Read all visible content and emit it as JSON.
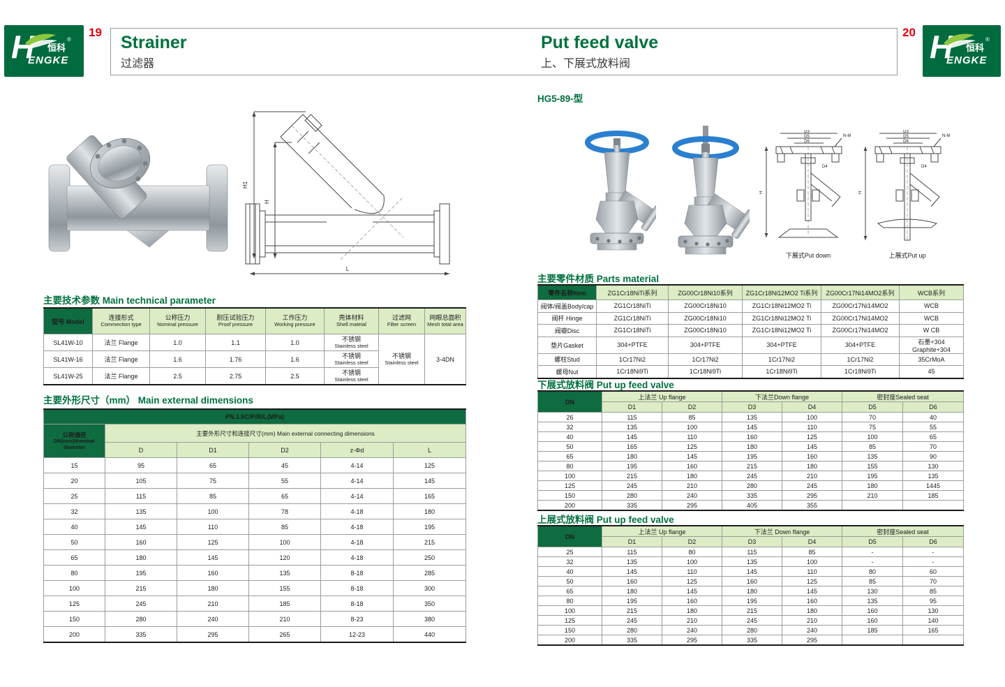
{
  "page": {
    "left_number": "19",
    "right_number": "20",
    "brand": {
      "cn": "恒科",
      "reg": "®",
      "en": "ENGKE",
      "h": "H"
    },
    "left_title": {
      "en": "Strainer",
      "zh": "过滤器"
    },
    "right_title": {
      "en": "Put feed valve",
      "zh": "上、下展式放料阀"
    }
  },
  "colors": {
    "brand_green": "#006b3f",
    "dark_cell": "#0f6b40",
    "light_cell": "#dcecc5",
    "page_num_red": "#e60012"
  },
  "left_page": {
    "drawing": {
      "dim_h1": "H1",
      "dim_h": "H",
      "dim_l": "L"
    },
    "tech_section_title": {
      "zh": "主要技术参数",
      "en": "Main technical parameter"
    },
    "tech_table": {
      "header_rows": [
        [
          {
            "t": "型号 Model",
            "cls": "dark"
          },
          {
            "zh": "连接形式",
            "en": "Commection type",
            "cls": "lite"
          },
          {
            "zh": "公称压力",
            "en": "Nominal pressure",
            "cls": "lite"
          },
          {
            "zh": "耐压试验压力",
            "en": "Proof pressure",
            "cls": "lite"
          },
          {
            "zh": "工作压力",
            "en": "Working pressure",
            "cls": "lite"
          },
          {
            "zh": "壳体材料",
            "en": "Shell mateial",
            "cls": "lite"
          },
          {
            "zh": "过滤网",
            "en": "Filter screen",
            "cls": "lite"
          },
          {
            "zh": "网眼总面积",
            "en": "Mesh total area",
            "cls": "lite"
          }
        ]
      ],
      "rows": [
        [
          "SL41W-10",
          "法兰 Flange",
          "1.0",
          "1.1",
          "1.0",
          {
            "zh": "不锈钢",
            "en": "Stainless steel"
          },
          {
            "zh": "不锈钢",
            "en": "Stainless steel",
            "rs": 3
          },
          {
            "t": "3-4DN",
            "rs": 3
          }
        ],
        [
          "SL41W-16",
          "法兰 Flange",
          "1.6",
          "1.76",
          "1.6",
          {
            "zh": "不锈钢",
            "en": "Stainless steel"
          },
          null,
          null
        ],
        [
          "SL41W-25",
          "法兰 Flange",
          "2.5",
          "2.75",
          "2.5",
          {
            "zh": "不锈钢",
            "en": "Stainless steel"
          },
          null,
          null
        ]
      ]
    },
    "dim_section_title": {
      "zh": "主要外形尺寸（mm）",
      "en": "Main external dimensions"
    },
    "dim_table": {
      "header_rows": [
        [
          {
            "t": "PN.1.6C/P/R/L(MPa)",
            "cs": 6,
            "cls": "dark"
          }
        ],
        [
          {
            "zh": "公称通径",
            "en": "DN(mm)Nominal diameter",
            "rs": 2,
            "cls": "dark"
          },
          {
            "t": "主要外形尺寸和连接尺寸(mm) Main external connecting dimensions",
            "cs": 5,
            "cls": "lite"
          }
        ],
        [
          {
            "t": "D",
            "cls": "lite"
          },
          {
            "t": "D1",
            "cls": "lite"
          },
          {
            "t": "D2",
            "cls": "lite"
          },
          {
            "t": "z-Φd",
            "cls": "lite"
          },
          {
            "t": "L",
            "cls": "lite"
          }
        ]
      ],
      "rows": [
        [
          "15",
          "95",
          "65",
          "45",
          "4-14",
          "125"
        ],
        [
          "20",
          "105",
          "75",
          "55",
          "4-14",
          "145"
        ],
        [
          "25",
          "115",
          "85",
          "65",
          "4-14",
          "165"
        ],
        [
          "32",
          "135",
          "100",
          "78",
          "4-18",
          "180"
        ],
        [
          "40",
          "145",
          "110",
          "85",
          "4-18",
          "195"
        ],
        [
          "50",
          "160",
          "125",
          "100",
          "4-18",
          "215"
        ],
        [
          "65",
          "180",
          "145",
          "120",
          "4-18",
          "250"
        ],
        [
          "80",
          "195",
          "160",
          "135",
          "8-18",
          "285"
        ],
        [
          "100",
          "215",
          "180",
          "155",
          "8-18",
          "300"
        ],
        [
          "125",
          "245",
          "210",
          "185",
          "8-18",
          "350"
        ],
        [
          "150",
          "280",
          "240",
          "210",
          "8-23",
          "380"
        ],
        [
          "200",
          "335",
          "295",
          "265",
          "12-23",
          "440"
        ]
      ]
    }
  },
  "right_page": {
    "model_title": "HG5-89-型",
    "drawings": {
      "caption_down": "下展式Put down",
      "caption_up": "上展式Put up",
      "dims": {
        "d3": "D3",
        "d5": "D5",
        "d6": "D6",
        "nm": "N-M",
        "d4": "D4",
        "h": "H"
      }
    },
    "parts_section_title": {
      "zh": "主要零件材质",
      "en": "Parts material"
    },
    "parts_table": {
      "header_rows": [
        [
          {
            "t": "零件名称Item",
            "cls": "dark"
          },
          {
            "t": "ZG1Cr18NiTi系列",
            "cls": "lite"
          },
          {
            "t": "ZG00Cr18Ni10系列",
            "cls": "lite"
          },
          {
            "t": "ZG1Cr18Ni12MO2 Ti系列",
            "cls": "lite"
          },
          {
            "t": "ZG00Cr17Ni14MO2系列",
            "cls": "lite"
          },
          {
            "t": "WCB系列",
            "cls": "lite"
          }
        ]
      ],
      "rows": [
        [
          "阀体/阀盖Body/cap",
          "ZG1Cr18NiTi",
          "ZG00Cr18Ni10",
          "ZG1Cr18Ni12MO2 Ti",
          "ZG00Cr17Ni14MO2",
          "WCB"
        ],
        [
          "阀杆 Hinge",
          "ZG1Cr18NiTi",
          "ZG00Cr18Ni10",
          "ZG1Cr18Ni12MO2 Ti",
          "ZG00Cr17Ni14MO2",
          "WCB"
        ],
        [
          "阀瓣Disc",
          "ZG1Cr18NiTi",
          "ZG00Cr18Ni10",
          "ZG1Cr18Ni12MO2 Ti",
          "ZG00Cr17Ni14MO2",
          "W CB"
        ],
        [
          "垫片Gasket",
          "304+PTFE",
          "304+PTFE",
          "304+PTFE",
          "304+PTFE",
          "石墨+304 Graphite+304"
        ],
        [
          "螺柱Stud",
          "1Cr17Ni2",
          "1Cr17Ni2",
          "1Cr17Ni2",
          "1Cr17Ni2",
          "35CrMoA"
        ],
        [
          "螺母Nut",
          "1Cr18Ni9Ti",
          "1Cr18Ni9Ti",
          "1Cr18Ni9Ti",
          "1Cr18Ni9Ti",
          "45"
        ]
      ]
    },
    "down_section_title": {
      "zh": "下展式放料阀",
      "en": "Put up feed valve"
    },
    "down_table": {
      "header_rows": [
        [
          {
            "t": "DN",
            "rs": 2,
            "cls": "dark"
          },
          {
            "t": "上法兰 Up flange",
            "cs": 2,
            "cls": "lite"
          },
          {
            "t": "下法兰Down flange",
            "cs": 2,
            "cls": "lite"
          },
          {
            "t": "密封座Sealed seat",
            "cs": 2,
            "cls": "lite"
          }
        ],
        [
          {
            "t": "D1",
            "cls": "lite"
          },
          {
            "t": "D2",
            "cls": "lite"
          },
          {
            "t": "D3",
            "cls": "lite"
          },
          {
            "t": "D4",
            "cls": "lite"
          },
          {
            "t": "D5",
            "cls": "lite"
          },
          {
            "t": "D6",
            "cls": "lite"
          }
        ]
      ],
      "rows": [
        [
          "26",
          "115",
          "85",
          "135",
          "100",
          "70",
          "40"
        ],
        [
          "32",
          "135",
          "100",
          "145",
          "110",
          "75",
          "55"
        ],
        [
          "40",
          "145",
          "110",
          "160",
          "125",
          "100",
          "65"
        ],
        [
          "50",
          "165",
          "125",
          "180",
          "145",
          "85",
          "70"
        ],
        [
          "65",
          "180",
          "145",
          "195",
          "160",
          "135",
          "90"
        ],
        [
          "80",
          "195",
          "160",
          "215",
          "180",
          "155",
          "130"
        ],
        [
          "100",
          "215",
          "180",
          "245",
          "210",
          "195",
          "135"
        ],
        [
          "125",
          "245",
          "210",
          "280",
          "245",
          "180",
          "1445"
        ],
        [
          "150",
          "280",
          "240",
          "335",
          "295",
          "210",
          "185"
        ],
        [
          "200",
          "335",
          "295",
          "405",
          "355",
          "",
          ""
        ]
      ]
    },
    "up_section_title": {
      "zh": "上展式放料阀",
      "en": "Put up feed valve"
    },
    "up_table": {
      "header_rows": [
        [
          {
            "t": "DN",
            "rs": 2,
            "cls": "dark"
          },
          {
            "t": "上法兰 Up flange",
            "cs": 2,
            "cls": "lite"
          },
          {
            "t": "下法兰 Down flange",
            "cs": 2,
            "cls": "lite"
          },
          {
            "t": "密封座Sealed seat",
            "cs": 2,
            "cls": "lite"
          }
        ],
        [
          {
            "t": "D1",
            "cls": "lite"
          },
          {
            "t": "D2",
            "cls": "lite"
          },
          {
            "t": "D3",
            "cls": "lite"
          },
          {
            "t": "D4",
            "cls": "lite"
          },
          {
            "t": "D5",
            "cls": "lite"
          },
          {
            "t": "D6",
            "cls": "lite"
          }
        ]
      ],
      "rows": [
        [
          "25",
          "115",
          "80",
          "115",
          "85",
          "-",
          "-"
        ],
        [
          "32",
          "135",
          "100",
          "135",
          "100",
          "-",
          "-"
        ],
        [
          "40",
          "145",
          "110",
          "145",
          "110",
          "80",
          "60"
        ],
        [
          "50",
          "160",
          "125",
          "160",
          "125",
          "85",
          "70"
        ],
        [
          "65",
          "180",
          "145",
          "180",
          "145",
          "130",
          "85"
        ],
        [
          "80",
          "195",
          "160",
          "195",
          "160",
          "135",
          "95"
        ],
        [
          "100",
          "215",
          "180",
          "215",
          "180",
          "160",
          "130"
        ],
        [
          "125",
          "245",
          "210",
          "245",
          "210",
          "160",
          "140"
        ],
        [
          "150",
          "280",
          "240",
          "280",
          "240",
          "185",
          "165"
        ],
        [
          "200",
          "335",
          "295",
          "335",
          "295",
          "",
          ""
        ]
      ]
    }
  }
}
